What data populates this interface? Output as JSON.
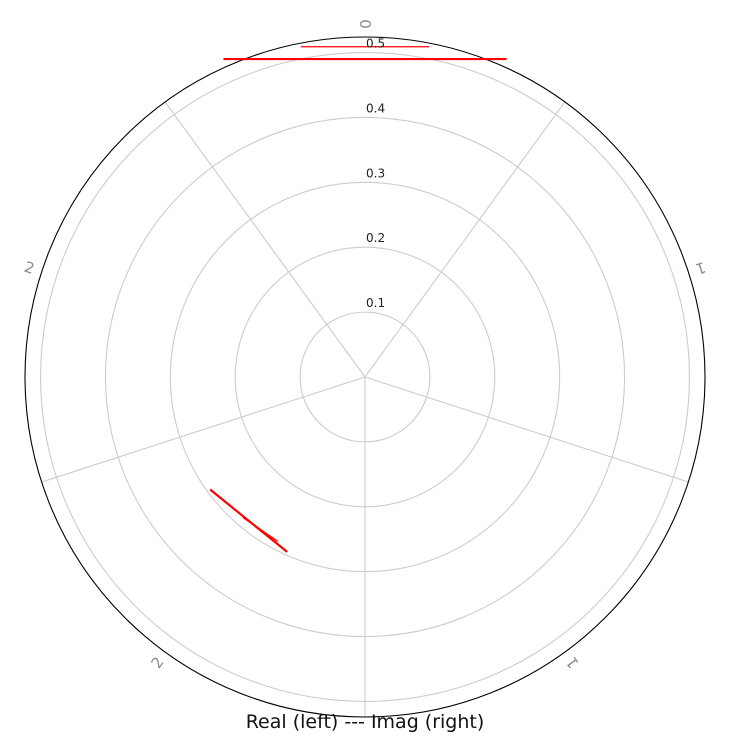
{
  "chart_data": {
    "type": "polar-line",
    "xlabel": "Real (left) --- Imag (right)",
    "theta_tick_labels": [
      "0",
      "1",
      "1",
      "2",
      "2"
    ],
    "r_tick_labels": [
      "0.1",
      "0.2",
      "0.3",
      "0.4",
      "0.5"
    ],
    "r_ticks": [
      0.1,
      0.2,
      0.3,
      0.4,
      0.5
    ],
    "rlim": [
      0,
      0.524
    ],
    "grid": true,
    "colors": {
      "series": "#ff0000",
      "grid": "#cccccc",
      "frame": "#000000"
    },
    "segments": [
      {
        "sector": 0,
        "r": 0.49,
        "theta_from_deg": -24,
        "theta_to_deg": 24,
        "weight": "thick"
      },
      {
        "sector": 0,
        "r": 0.509,
        "theta_from_deg": -11,
        "theta_to_deg": 11,
        "weight": "thin"
      },
      {
        "sector": 3,
        "r": 0.285,
        "theta_from_deg": -12,
        "theta_to_deg": 18,
        "weight": "thick"
      },
      {
        "sector": 3,
        "r": 0.285,
        "theta_from_deg": -8,
        "theta_to_deg": 5,
        "weight": "thin"
      }
    ]
  }
}
